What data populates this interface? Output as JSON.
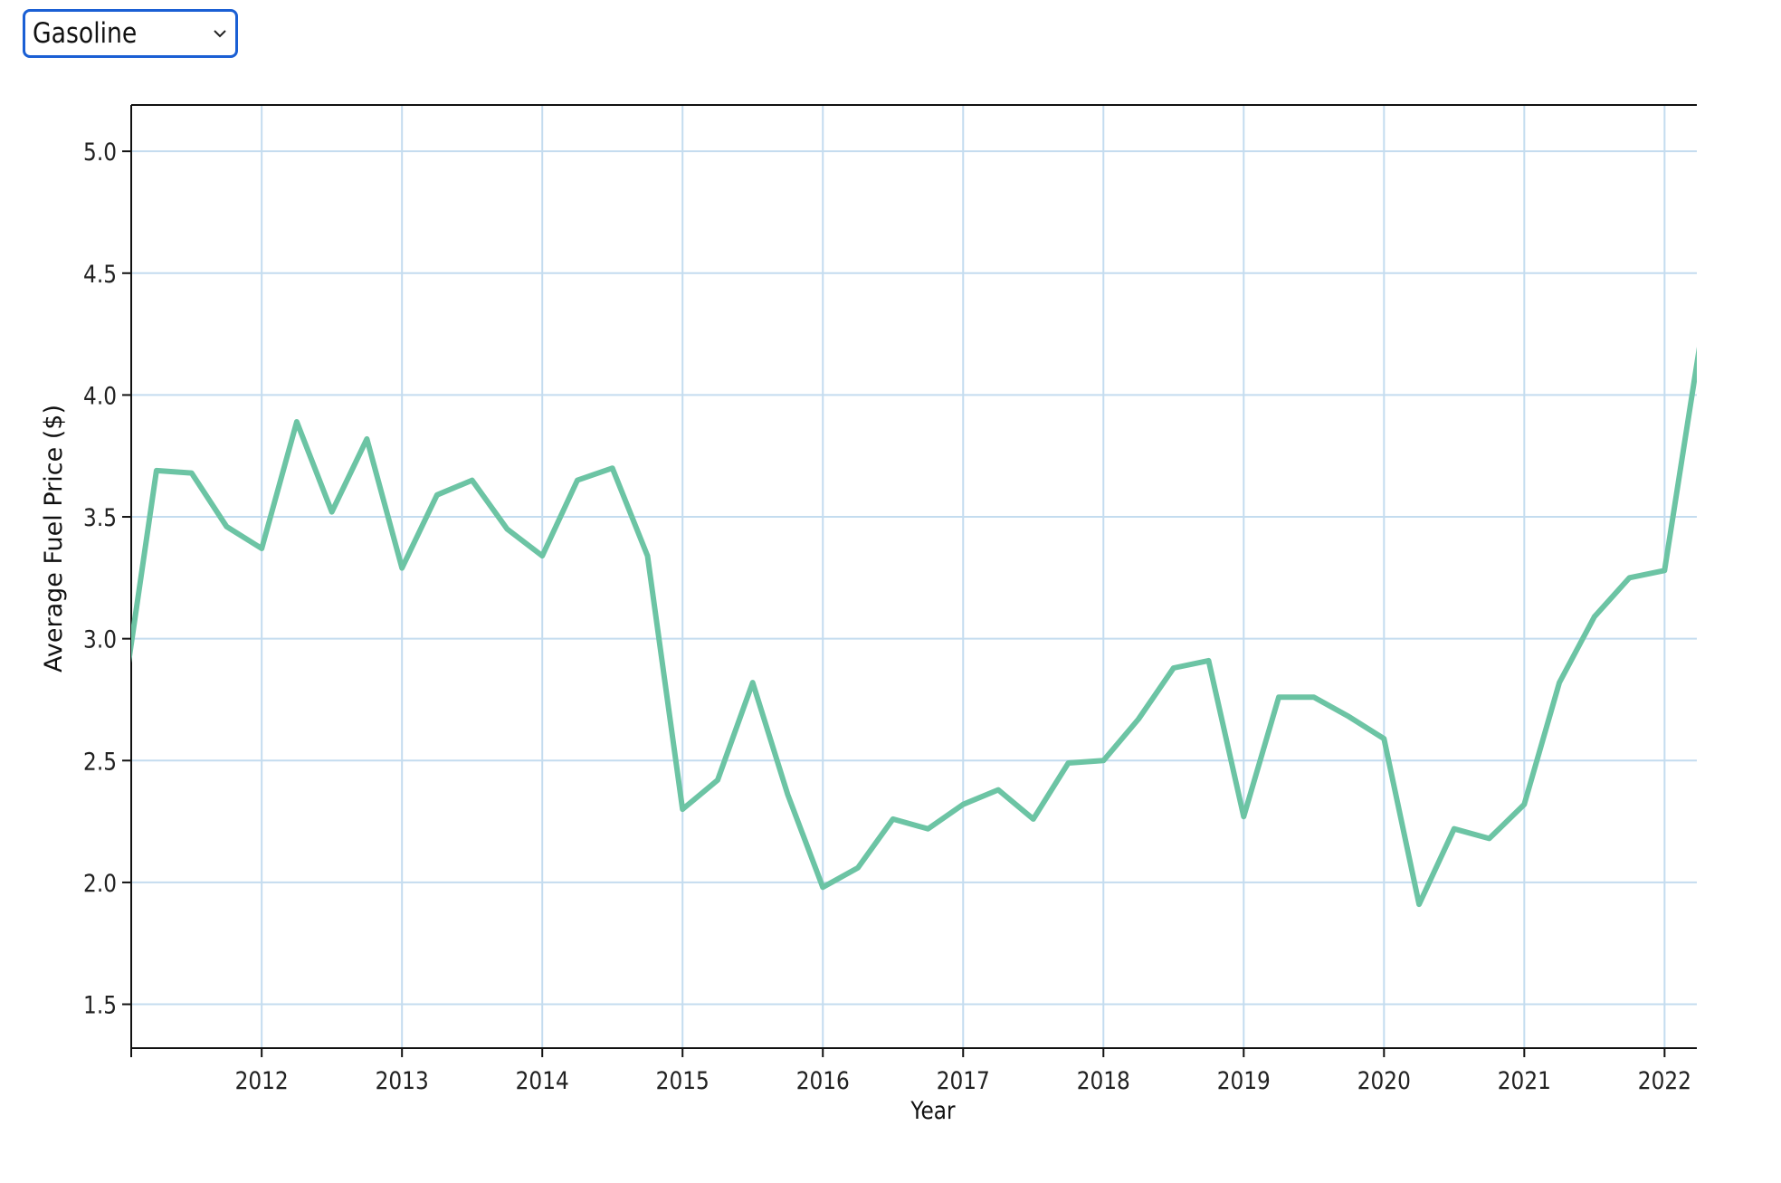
{
  "selector": {
    "selected": "Gasoline"
  },
  "icons": {
    "dropdown": "chevron-down-icon"
  },
  "colors": {
    "line": "#6cc4a4",
    "grid": "#c4dcef",
    "axis": "#111111",
    "select_border": "#1a5fd4"
  },
  "chart_data": {
    "type": "line",
    "title": "",
    "xlabel": "Year",
    "ylabel": "Average Fuel Price ($)",
    "grid": true,
    "xlim": [
      2011.07,
      2022.23
    ],
    "ylim": [
      1.32,
      5.19
    ],
    "x_ticks": [
      2012,
      2013,
      2014,
      2015,
      2016,
      2017,
      2018,
      2019,
      2020,
      2021,
      2022
    ],
    "y_ticks": [
      1.5,
      2.0,
      2.5,
      3.0,
      3.5,
      4.0,
      4.5,
      5.0
    ],
    "y_tick_labels": [
      "1.5",
      "2.0",
      "2.5",
      "3.0",
      "3.5",
      "4.0",
      "4.5",
      "5.0"
    ],
    "series": [
      {
        "x": [
          2011.0,
          2011.25,
          2011.5,
          2011.75,
          2012.0,
          2012.25,
          2012.5,
          2012.75,
          2013.0,
          2013.25,
          2013.5,
          2013.75,
          2014.0,
          2014.25,
          2014.5,
          2014.75,
          2015.0,
          2015.25,
          2015.5,
          2015.75,
          2016.0,
          2016.25,
          2016.5,
          2016.75,
          2017.0,
          2017.25,
          2017.5,
          2017.75,
          2018.0,
          2018.25,
          2018.5,
          2018.75,
          2019.0,
          2019.25,
          2019.5,
          2019.75,
          2020.0,
          2020.25,
          2020.5,
          2020.75,
          2021.0,
          2021.25,
          2021.5,
          2021.75,
          2022.0,
          2022.25
        ],
        "y": [
          2.7,
          3.69,
          3.68,
          3.46,
          3.37,
          3.89,
          3.52,
          3.82,
          3.29,
          3.59,
          3.65,
          3.45,
          3.34,
          3.65,
          3.7,
          3.34,
          2.3,
          2.42,
          2.82,
          2.36,
          1.98,
          2.06,
          2.26,
          2.22,
          2.32,
          2.38,
          2.26,
          2.49,
          2.5,
          2.67,
          2.88,
          2.91,
          2.27,
          2.76,
          2.76,
          2.68,
          2.59,
          1.91,
          2.22,
          2.18,
          2.32,
          2.82,
          3.09,
          3.25,
          3.28,
          4.2
        ]
      }
    ]
  }
}
